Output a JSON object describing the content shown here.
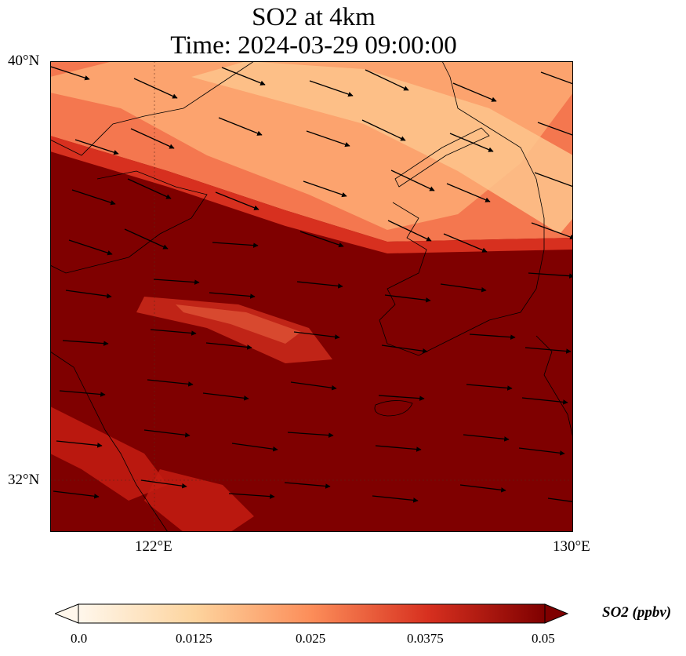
{
  "title": {
    "line1": "SO2 at 4km",
    "line2": "Time: 2024-03-29 09:00:00"
  },
  "axes": {
    "lat_labels": [
      "40°N",
      "32°N"
    ],
    "lon_labels": [
      "122°E",
      "130°E"
    ],
    "lat_range": [
      31,
      40
    ],
    "lon_range": [
      120,
      130
    ]
  },
  "colorbar": {
    "label": "SO2 (ppbv)",
    "ticks": [
      "0.0",
      "0.0125",
      "0.025",
      "0.0375",
      "0.05"
    ],
    "range": [
      0,
      0.05
    ],
    "colormap": "OrRd",
    "colors": [
      "#fff7ec",
      "#fdd49e",
      "#fc8d59",
      "#d7301f",
      "#7f0000"
    ],
    "extend": "both"
  },
  "field": {
    "variable": "SO2",
    "units": "ppbv",
    "description_values": {
      "north_band_min": 0.012,
      "south_region": 0.05
    }
  }
}
